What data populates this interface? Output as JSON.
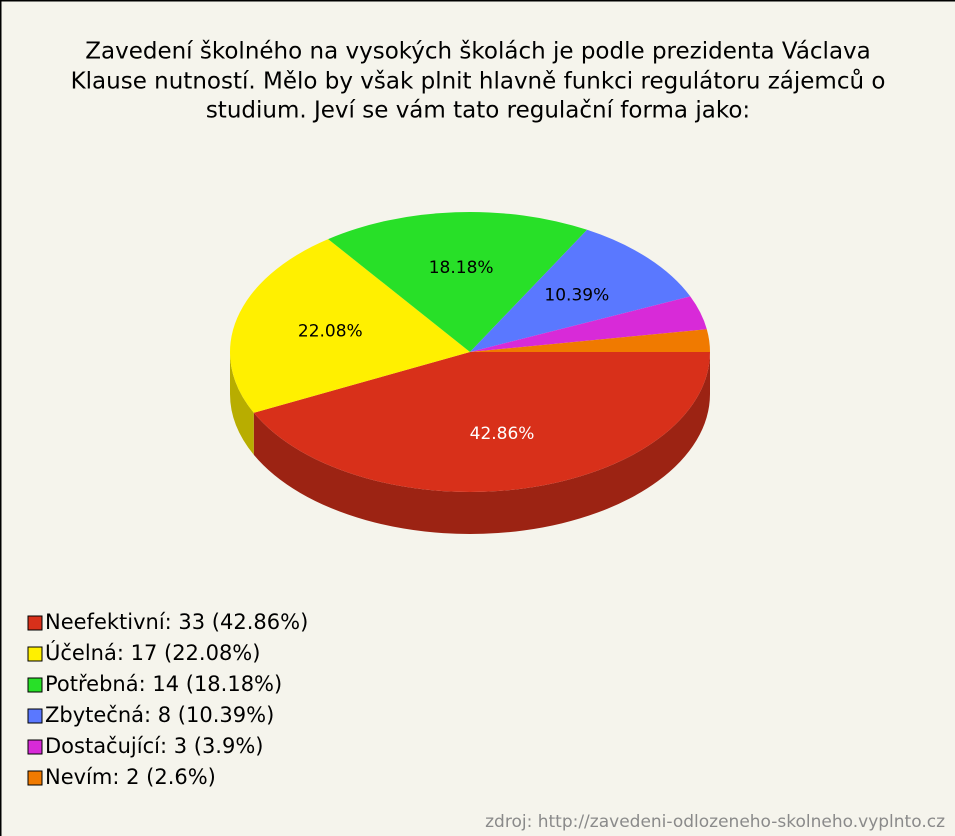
{
  "chart_data": {
    "type": "pie",
    "title": [
      "Zavedení školného na vysokých školách je podle prezidenta Václava",
      "Klause nutností. Mělo by však plnit hlavně funkci regulátoru zájemců o",
      "studium. Jeví se vám tato regulační forma jako:"
    ],
    "labels": [
      "Neefektivní: 33 (42.86%)",
      "Účelná: 17 (22.08%)",
      "Potřebná: 14 (18.18%)",
      "Zbytečná: 8 (10.39%)",
      "Dostačující: 3 (3.9%)",
      "Nevím: 2 (2.6%)"
    ],
    "values": [
      42.86,
      22.08,
      18.18,
      10.39,
      3.9,
      2.6
    ],
    "value_labels": [
      "42.86%",
      "22.08%",
      "18.18%",
      "10.39%",
      null,
      null
    ],
    "colors": [
      "#d8301a",
      "#fff000",
      "#28e028",
      "#5a78ff",
      "#d82ad8",
      "#f07a00"
    ],
    "source": "zdroj: http://zavedeni-odlozeneho-skolneho.vyplnto.cz"
  }
}
